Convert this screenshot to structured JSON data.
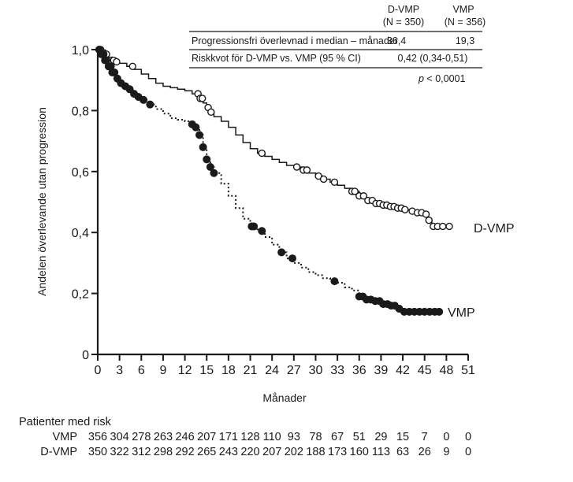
{
  "chart_data": {
    "type": "line",
    "subtype": "kaplan-meier",
    "title": "",
    "xlabel": "Månader",
    "ylabel": "Andelen överlevande utan progression",
    "xlim": [
      0,
      51
    ],
    "ylim": [
      0,
      1.0
    ],
    "x_ticks": [
      0,
      3,
      6,
      9,
      12,
      15,
      18,
      21,
      24,
      27,
      30,
      33,
      36,
      39,
      42,
      45,
      48,
      51
    ],
    "y_ticks": [
      {
        "value": 0,
        "label": "0"
      },
      {
        "value": 0.2,
        "label": "0,2"
      },
      {
        "value": 0.4,
        "label": "0,4"
      },
      {
        "value": 0.6,
        "label": "0,6"
      },
      {
        "value": 0.8,
        "label": "0,8"
      },
      {
        "value": 1.0,
        "label": "1,0"
      }
    ],
    "grid": false,
    "series": [
      {
        "name": "D-VMP",
        "line_style": "solid",
        "marker": "open-circle",
        "label": "D-VMP",
        "x": [
          0,
          0.5,
          1,
          1.5,
          2,
          2.5,
          3,
          4,
          5,
          6,
          7,
          8,
          9,
          10,
          11,
          12,
          13,
          14,
          14.5,
          15,
          15.5,
          16,
          17,
          18,
          19,
          20,
          21,
          22,
          23,
          24,
          25,
          26,
          27,
          28,
          29,
          30,
          31,
          32,
          33,
          34,
          35,
          36,
          37,
          38,
          39,
          40,
          41,
          42,
          43,
          44,
          45,
          45.5,
          46,
          47,
          48
        ],
        "y": [
          1.0,
          0.99,
          0.985,
          0.975,
          0.965,
          0.96,
          0.955,
          0.945,
          0.935,
          0.92,
          0.905,
          0.89,
          0.88,
          0.875,
          0.87,
          0.865,
          0.855,
          0.84,
          0.825,
          0.81,
          0.795,
          0.78,
          0.765,
          0.745,
          0.72,
          0.695,
          0.675,
          0.66,
          0.65,
          0.64,
          0.63,
          0.62,
          0.615,
          0.605,
          0.595,
          0.585,
          0.575,
          0.565,
          0.555,
          0.545,
          0.535,
          0.52,
          0.505,
          0.495,
          0.49,
          0.485,
          0.48,
          0.475,
          0.47,
          0.465,
          0.46,
          0.44,
          0.42,
          0.42,
          0.42
        ],
        "censor_x": [
          0.4,
          0.8,
          1.2,
          2.2,
          2.6,
          4.8,
          13.8,
          14.1,
          14.4,
          15.2,
          15.6,
          22.6,
          27.4,
          28.3,
          28.8,
          30.4,
          31.1,
          32.6,
          35,
          35.4,
          36,
          36.6,
          37.2,
          37.8,
          38.3,
          38.8,
          39.3,
          39.8,
          40.3,
          40.8,
          41.3,
          41.8,
          42.3,
          43.3,
          44,
          44.6,
          45.2,
          45.6,
          46.2,
          46.8,
          47.5,
          48.4
        ]
      },
      {
        "name": "VMP",
        "line_style": "dotted",
        "marker": "filled-circle",
        "label": "VMP",
        "x": [
          0,
          0.5,
          1,
          1.5,
          2,
          2.5,
          3,
          3.5,
          4,
          4.5,
          5,
          5.5,
          6,
          7,
          8,
          9,
          10,
          11,
          12,
          12.5,
          13,
          13.5,
          14,
          14.5,
          15,
          15.5,
          16,
          17,
          18,
          19,
          20,
          21,
          22,
          23,
          24,
          25,
          26,
          27,
          28,
          29,
          30,
          31,
          32,
          33,
          34,
          35,
          36,
          37,
          38,
          39,
          40,
          41,
          42,
          43,
          44,
          45,
          46,
          47
        ],
        "y": [
          1.0,
          0.985,
          0.965,
          0.945,
          0.925,
          0.905,
          0.89,
          0.88,
          0.87,
          0.86,
          0.855,
          0.845,
          0.835,
          0.82,
          0.805,
          0.79,
          0.775,
          0.77,
          0.765,
          0.76,
          0.755,
          0.745,
          0.72,
          0.68,
          0.64,
          0.615,
          0.595,
          0.56,
          0.52,
          0.48,
          0.445,
          0.42,
          0.405,
          0.385,
          0.36,
          0.335,
          0.315,
          0.3,
          0.285,
          0.27,
          0.26,
          0.25,
          0.24,
          0.235,
          0.22,
          0.21,
          0.19,
          0.18,
          0.175,
          0.165,
          0.16,
          0.15,
          0.14,
          0.14,
          0.14,
          0.14,
          0.14,
          0.14
        ],
        "censor_x": [
          0.2,
          0.5,
          0.8,
          1,
          1.2,
          1.5,
          1.8,
          2,
          2.3,
          2.7,
          3.2,
          3.8,
          4.4,
          5,
          5.6,
          6.3,
          7.2,
          13,
          13.5,
          14,
          14.5,
          15,
          15.5,
          16,
          21.2,
          21.5,
          22.6,
          25.3,
          26.8,
          32.6,
          36,
          36.5,
          37,
          37.6,
          38.2,
          38.8,
          39.3,
          39.9,
          40.4,
          40.9,
          41.5,
          42.2,
          42.9,
          43.6,
          44.3,
          45,
          45.7,
          46.4,
          47
        ]
      }
    ],
    "annotations": {
      "summary_table": {
        "col_headers": [
          {
            "name": "D-VMP",
            "n": "(N = 350)"
          },
          {
            "name": "VMP",
            "n": "(N = 356)"
          }
        ],
        "rows": [
          {
            "label": "Progressionsfri överlevnad i median – månader",
            "d_vmp": "36,4",
            "vmp": "19,3"
          },
          {
            "label": "Riskkvot för D-VMP vs. VMP (95 % CI)",
            "merged": "0,42 (0,34-0,51)"
          }
        ],
        "p_value_symbol": "p",
        "p_value_text": " < 0,0001"
      }
    },
    "at_risk": {
      "title": "Patienter med risk",
      "rows": [
        {
          "label": "VMP",
          "values": [
            "356",
            "304",
            "278",
            "263",
            "246",
            "207",
            "171",
            "128",
            "110",
            "93",
            "78",
            "67",
            "51",
            "29",
            "15",
            "7",
            "0",
            "0"
          ]
        },
        {
          "label": "D-VMP",
          "values": [
            "350",
            "322",
            "312",
            "298",
            "292",
            "265",
            "243",
            "220",
            "207",
            "202",
            "188",
            "173",
            "160",
            "113",
            "63",
            "26",
            "9",
            "0"
          ]
        }
      ]
    },
    "colors": {
      "ink": "#1a1a1a",
      "background": "#ffffff"
    }
  }
}
